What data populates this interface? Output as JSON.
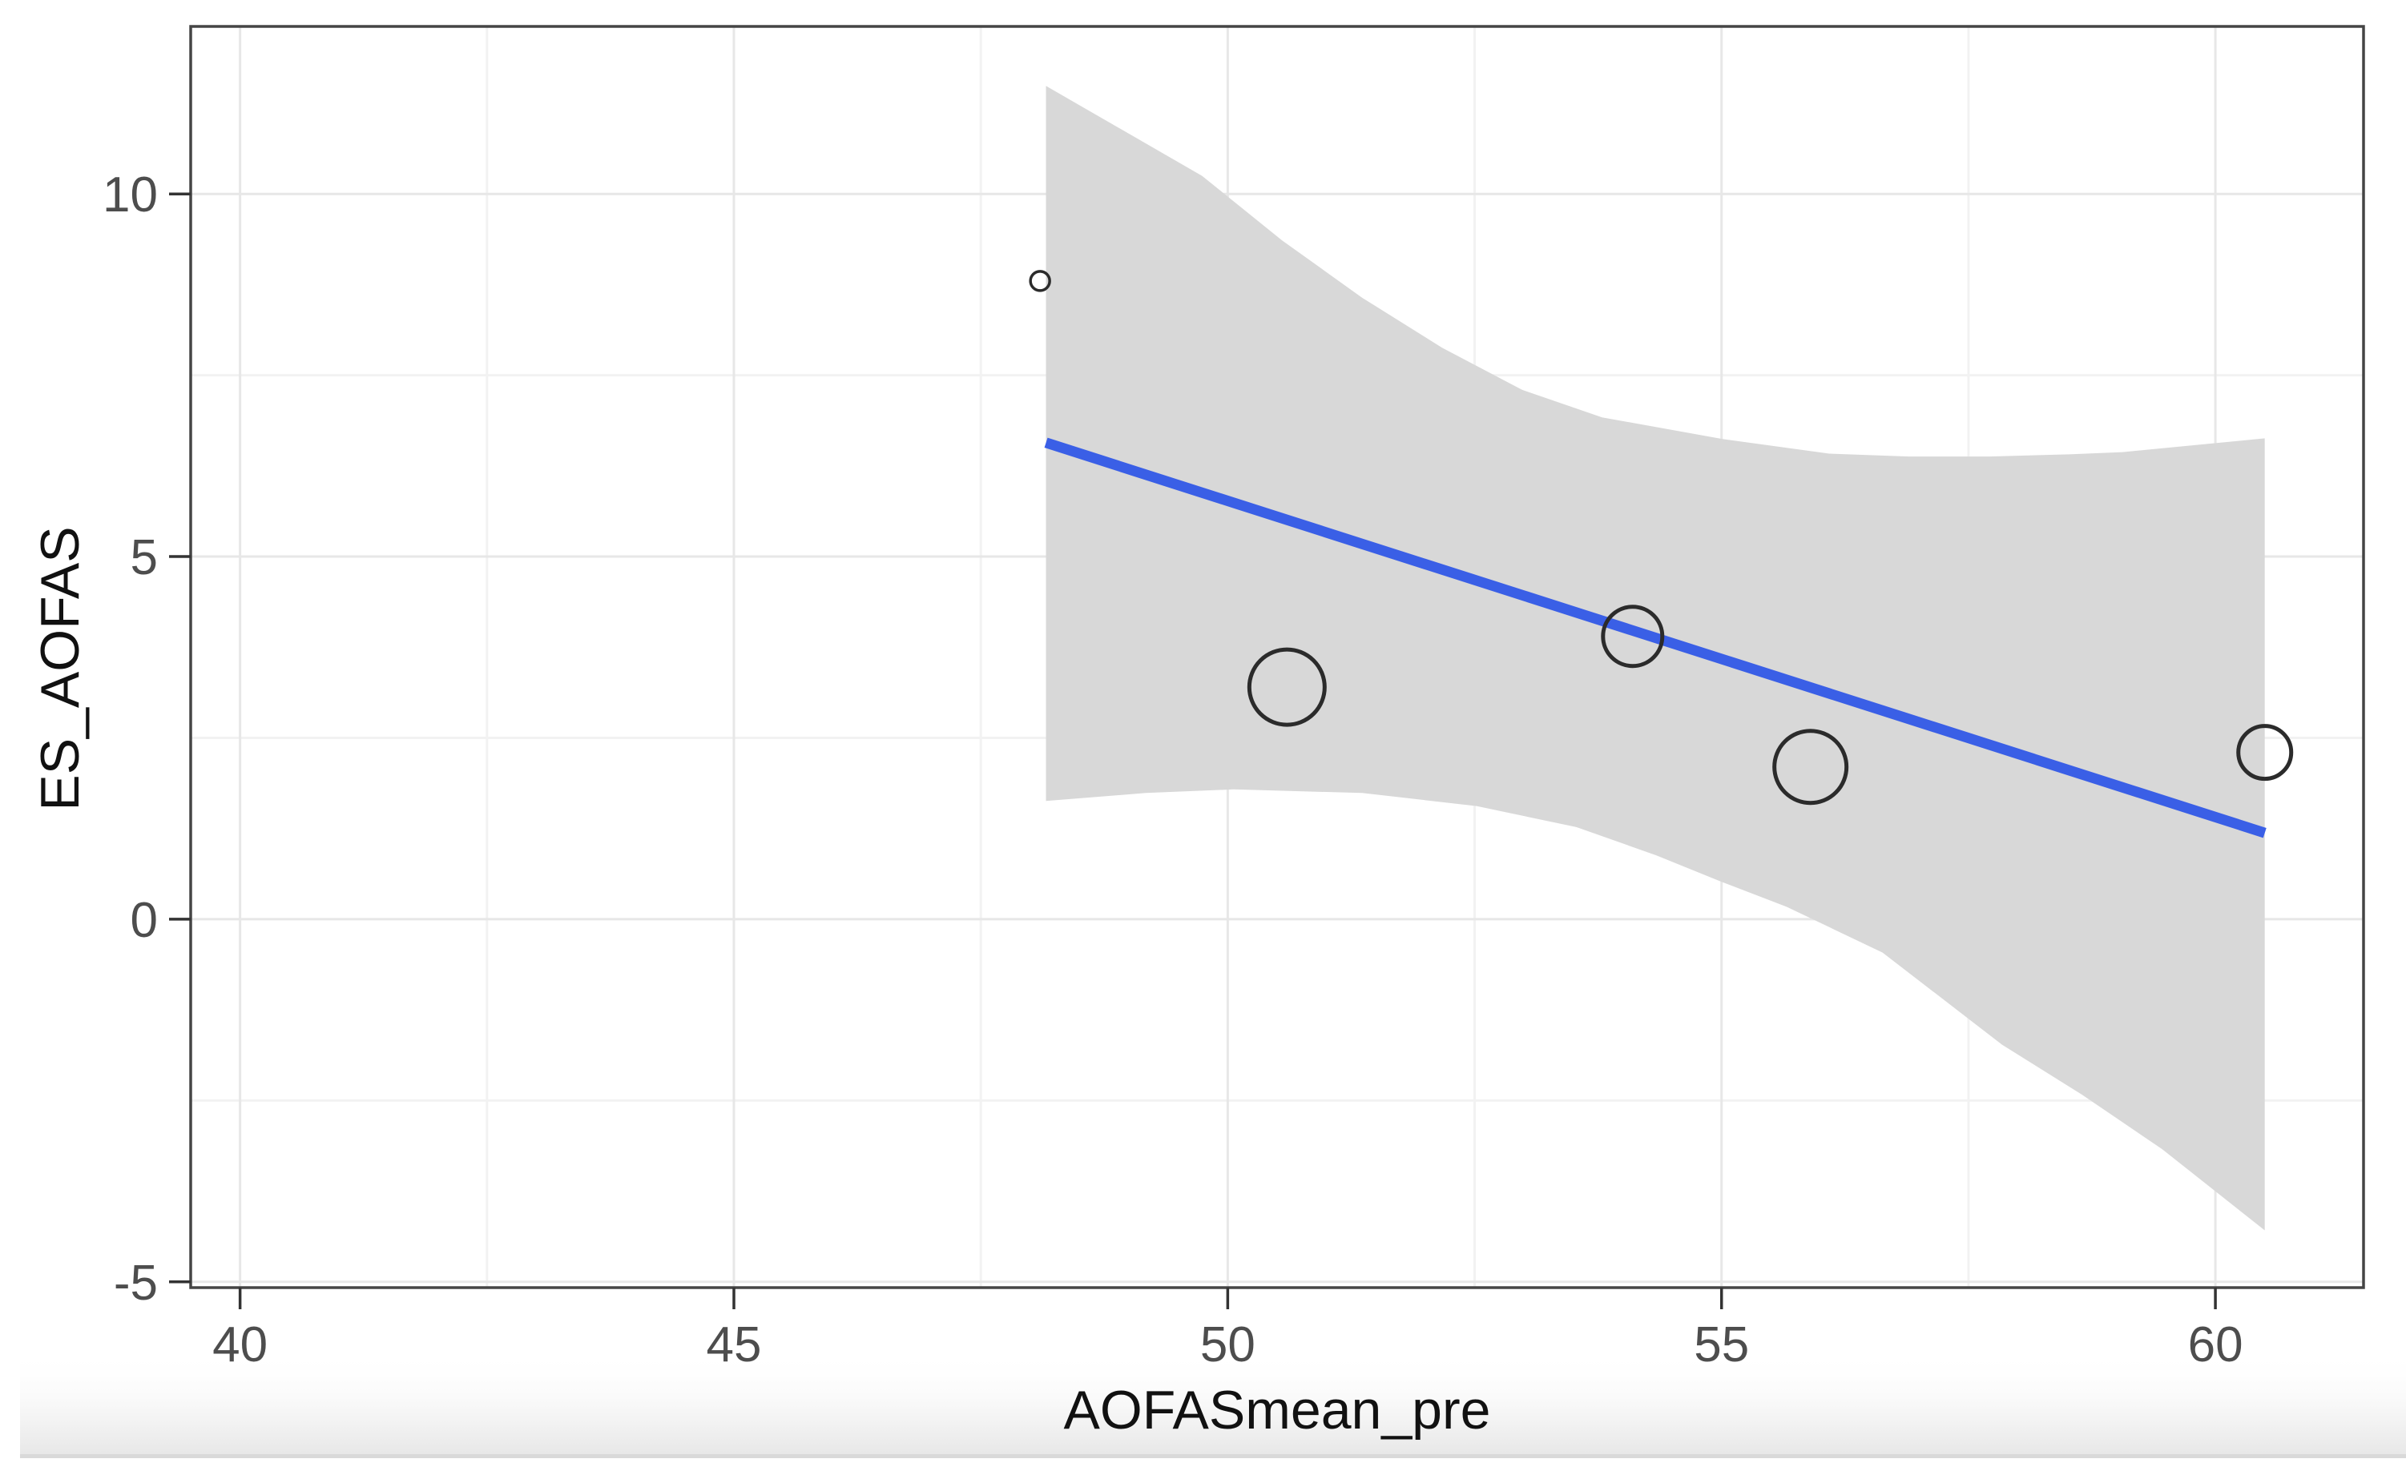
{
  "chart_data": {
    "type": "scatter",
    "title": "",
    "xlabel": "AOFASmean_pre",
    "ylabel": "ES_AOFAS",
    "xlim": [
      39.5,
      61.5
    ],
    "ylim": [
      -5.08,
      12.31
    ],
    "grid": true,
    "legend_position": "none",
    "x_major_ticks": [
      40,
      45,
      50,
      55,
      60
    ],
    "x_tick_labels": [
      "40",
      "45",
      "50",
      "55",
      "60"
    ],
    "x_minor_ticks": [
      42.5,
      47.5,
      52.5,
      57.5
    ],
    "y_major_ticks": [
      10,
      5,
      0,
      -5
    ],
    "y_tick_labels": [
      "10",
      "5",
      "0",
      "-5"
    ],
    "y_minor_ticks": [
      7.5,
      2.5,
      -2.5
    ],
    "points": [
      {
        "x": 48.1,
        "y": 8.8,
        "radius_px": 12
      },
      {
        "x": 50.6,
        "y": 3.2,
        "radius_px": 47
      },
      {
        "x": 54.1,
        "y": 3.9,
        "radius_px": 37
      },
      {
        "x": 55.9,
        "y": 2.1,
        "radius_px": 45
      },
      {
        "x": 60.5,
        "y": 2.3,
        "radius_px": 33
      }
    ],
    "regression_line": {
      "x1": 48.16,
      "y1": 6.57,
      "x2": 60.5,
      "y2": 1.19
    },
    "ci_band": {
      "upper": [
        [
          48.16,
          11.49
        ],
        [
          49.74,
          10.25
        ],
        [
          50.55,
          9.36
        ],
        [
          51.36,
          8.57
        ],
        [
          52.17,
          7.88
        ],
        [
          52.98,
          7.3
        ],
        [
          53.79,
          6.92
        ],
        [
          55.01,
          6.62
        ],
        [
          56.09,
          6.42
        ],
        [
          56.9,
          6.38
        ],
        [
          57.71,
          6.38
        ],
        [
          58.52,
          6.41
        ],
        [
          59.06,
          6.44
        ],
        [
          60.5,
          6.63
        ]
      ],
      "lower": [
        [
          48.16,
          1.63
        ],
        [
          49.17,
          1.74
        ],
        [
          50.06,
          1.79
        ],
        [
          51.36,
          1.74
        ],
        [
          52.52,
          1.56
        ],
        [
          53.53,
          1.27
        ],
        [
          54.34,
          0.88
        ],
        [
          55.01,
          0.51
        ],
        [
          55.66,
          0.17
        ],
        [
          56.63,
          -0.46
        ],
        [
          57.84,
          -1.73
        ],
        [
          58.65,
          -2.42
        ],
        [
          59.46,
          -3.17
        ],
        [
          60.5,
          -4.29
        ]
      ]
    },
    "colors": {
      "line": "#3A5FE6",
      "band": "#D8D8D8",
      "grid_major": "#E7E7E7",
      "grid_minor": "#F2F2F2",
      "panel_border": "#454545",
      "tick": "#333333",
      "tick_label": "#4D4D4D",
      "axis_title": "#111111",
      "point_stroke": "#2B2B2B",
      "panel_bg": "#FFFFFF"
    }
  }
}
